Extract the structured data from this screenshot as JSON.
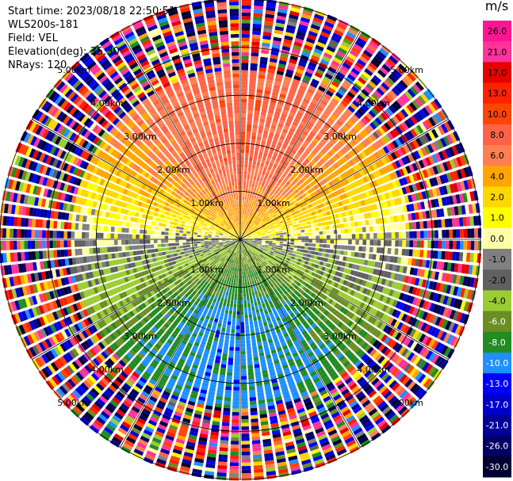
{
  "info": {
    "start_time": "Start time: 2023/08/18 22:50:51",
    "instrument": "WLS200s-181",
    "field": "Field: VEL",
    "elevation": "Elevation(deg): 35.30",
    "nrays": "NRays: 120"
  },
  "colorbar": {
    "unit": "m/s",
    "labels": [
      "26.0",
      "21.0",
      "17.0",
      "13.0",
      "10.0",
      "8.0",
      "6.0",
      "4.0",
      "2.0",
      "1.0",
      "0.0",
      "-1.0",
      "-2.0",
      "-4.0",
      "-6.0",
      "-8.0",
      "-10.0",
      "-13.0",
      "-17.0",
      "-21.0",
      "-26.0",
      "-30.0"
    ],
    "colors": [
      "#ff1493",
      "#ff3399",
      "#e60000",
      "#ff2200",
      "#ff4500",
      "#ff6347",
      "#ff7f50",
      "#ffa500",
      "#ffd700",
      "#ffff00",
      "#ffffaa",
      "#808080",
      "#606060",
      "#9acd32",
      "#6b8e23",
      "#228b22",
      "#1e90ff",
      "#0000ff",
      "#0000cd",
      "#000099",
      "#000066",
      "#000033"
    ]
  },
  "chart_data": {
    "type": "heatmap",
    "title": "",
    "field": "VEL",
    "units": "m/s",
    "elevation_deg": 35.3,
    "n_rays": 120,
    "max_range_km": 5.0,
    "range_rings_km": [
      1.0,
      2.0,
      3.0,
      4.0,
      5.0
    ],
    "ring_labels": [
      "1.00km",
      "2.00km",
      "3.00km",
      "4.00km",
      "5.00km"
    ],
    "colorscale_min": -30.0,
    "colorscale_max": 26.0,
    "pattern": {
      "north_sector_velocity_ms": 8.0,
      "south_sector_velocity_ms": -8.0,
      "noise_beyond_km": 3.5
    }
  }
}
